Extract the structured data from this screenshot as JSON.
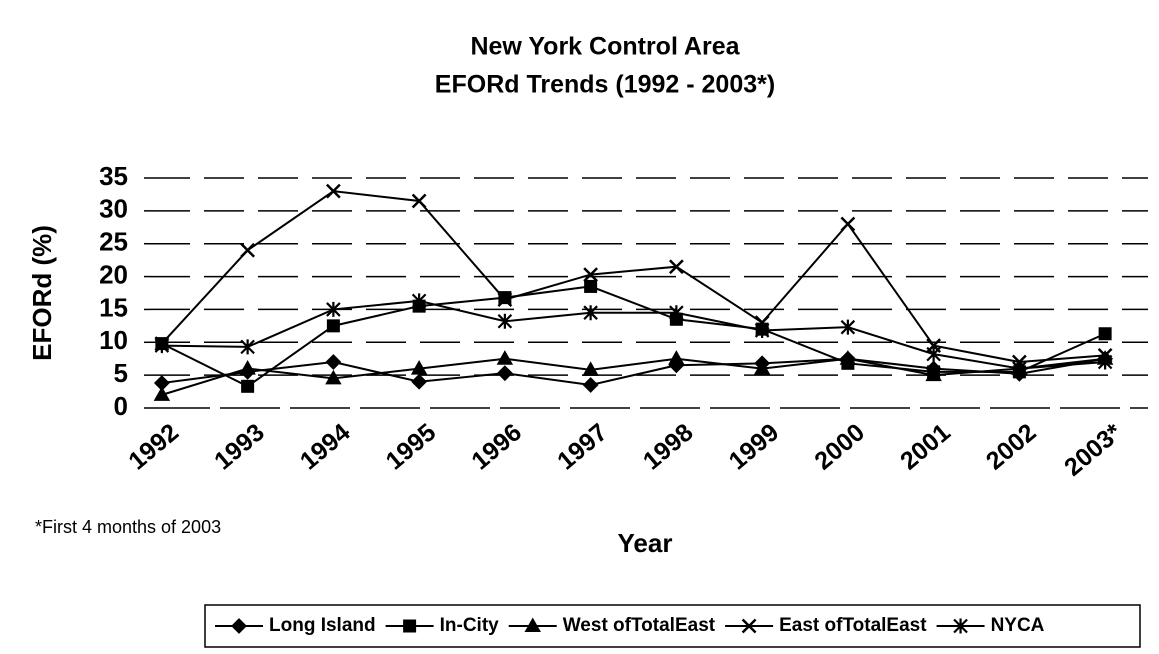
{
  "chart_data": {
    "type": "line",
    "title": "New York Control Area",
    "subtitle": "EFORd Trends (1992 - 2003*)",
    "y_label": "EFORd (%)",
    "x_label": "Year",
    "annotation": "*First 4 months of 2003",
    "categories": [
      "1992",
      "1993",
      "1994",
      "1995",
      "1996",
      "1997",
      "1998",
      "1999",
      "2000",
      "2001",
      "2002",
      "2003*"
    ],
    "series": [
      {
        "name": "Long Island",
        "color": "#000000",
        "marker": "diamond",
        "values": [
          3.8,
          5.5,
          7,
          4,
          5.3,
          3.5,
          6.5,
          6.8,
          7.5,
          6,
          5.2,
          7.5
        ]
      },
      {
        "name": "In-City",
        "color": "#000000",
        "marker": "square",
        "values": [
          9.8,
          3.3,
          12.5,
          15.5,
          16.8,
          18.5,
          13.5,
          12,
          6.8,
          5.5,
          5.5,
          11.3
        ]
      },
      {
        "name": "West ofTotalEast",
        "color": "#000000",
        "marker": "triangle",
        "values": [
          2,
          6,
          4.5,
          6,
          7.5,
          5.8,
          7.5,
          6,
          7.5,
          5,
          6,
          7.5
        ]
      },
      {
        "name": "East ofTotalEast",
        "color": "#000000",
        "marker": "x",
        "values": [
          9.8,
          24,
          33,
          31.5,
          16.5,
          20.3,
          21.5,
          13,
          28,
          9.5,
          7,
          8
        ]
      },
      {
        "name": "NYCA",
        "color": "#000000",
        "marker": "star",
        "values": [
          9.5,
          9.3,
          15,
          16.3,
          13.2,
          14.5,
          14.5,
          11.8,
          12.3,
          8.2,
          6,
          7
        ]
      }
    ],
    "ylim": [
      0,
      35
    ],
    "yticks": [
      0,
      5,
      10,
      15,
      20,
      25,
      30,
      35
    ],
    "grid": true,
    "legend": "bottom"
  }
}
